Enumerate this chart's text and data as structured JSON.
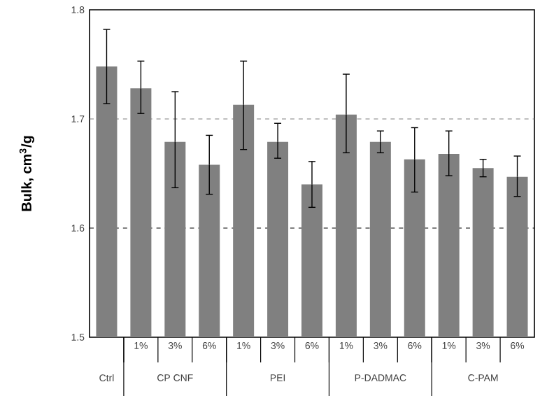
{
  "chart_data": {
    "type": "bar",
    "ylabel": "Bulk, cm$^{3}$/g",
    "categories": [
      null,
      "1%",
      "3%",
      "6%",
      "1%",
      "3%",
      "6%",
      "1%",
      "3%",
      "6%",
      "1%",
      "3%",
      "6%"
    ],
    "values": [
      1.748,
      1.728,
      1.679,
      1.658,
      1.713,
      1.679,
      1.64,
      1.704,
      1.679,
      1.663,
      1.668,
      1.655,
      1.647
    ],
    "errors": [
      [
        1.714,
        1.782
      ],
      [
        1.705,
        1.753
      ],
      [
        1.637,
        1.725
      ],
      [
        1.631,
        1.685
      ],
      [
        1.672,
        1.753
      ],
      [
        1.664,
        1.696
      ],
      [
        1.619,
        1.661
      ],
      [
        1.669,
        1.741
      ],
      [
        1.669,
        1.689
      ],
      [
        1.633,
        1.692
      ],
      [
        1.648,
        1.689
      ],
      [
        1.647,
        1.663
      ],
      [
        1.629,
        1.666
      ]
    ],
    "color": "#808080",
    "ylim": [
      1.5,
      1.8
    ],
    "yticks": [
      1.5,
      1.6,
      1.7,
      1.8
    ],
    "ref_lines": [
      {
        "axis": "y",
        "value": 1.7,
        "color": "#808080",
        "line_style": "dashed"
      },
      {
        "axis": "y",
        "value": 1.6,
        "color": "#000000",
        "line_style": "dashed"
      }
    ],
    "annotations": [
      "Ctrl",
      "CP CNF",
      "PEI",
      "P-DADMAC",
      "C-PAM"
    ],
    "grid": false
  }
}
